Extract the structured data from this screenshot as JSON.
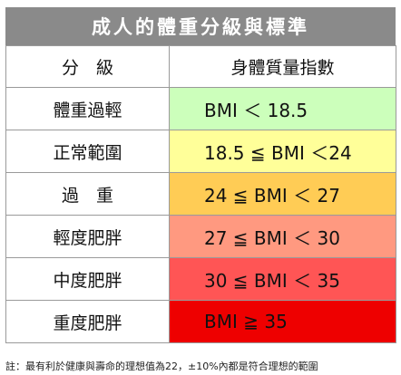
{
  "title": "成人的體重分級與標準",
  "header": {
    "category": "分　級",
    "range": "身體質量指數"
  },
  "rows": [
    {
      "category": "體重過輕",
      "range": "BMI ＜ 18.5",
      "color": "#ccffbb"
    },
    {
      "category": "正常範圍",
      "range": "18.5 ≦ BMI ＜24",
      "color": "#ffff99"
    },
    {
      "category": "過　重",
      "range": "24 ≦ BMI ＜ 27",
      "color": "#ffcc55"
    },
    {
      "category": "輕度肥胖",
      "range": "27 ≦ BMI ＜ 30",
      "color": "#ff9980"
    },
    {
      "category": "中度肥胖",
      "range": "30 ≦ BMI ＜ 35",
      "color": "#ff5555"
    },
    {
      "category": "重度肥胖",
      "range": "BMI ≧ 35",
      "color": "#ee0000"
    }
  ],
  "footnote": "註：最有利於健康與壽命的理想值為22，±10%內都是符合理想的範圍"
}
